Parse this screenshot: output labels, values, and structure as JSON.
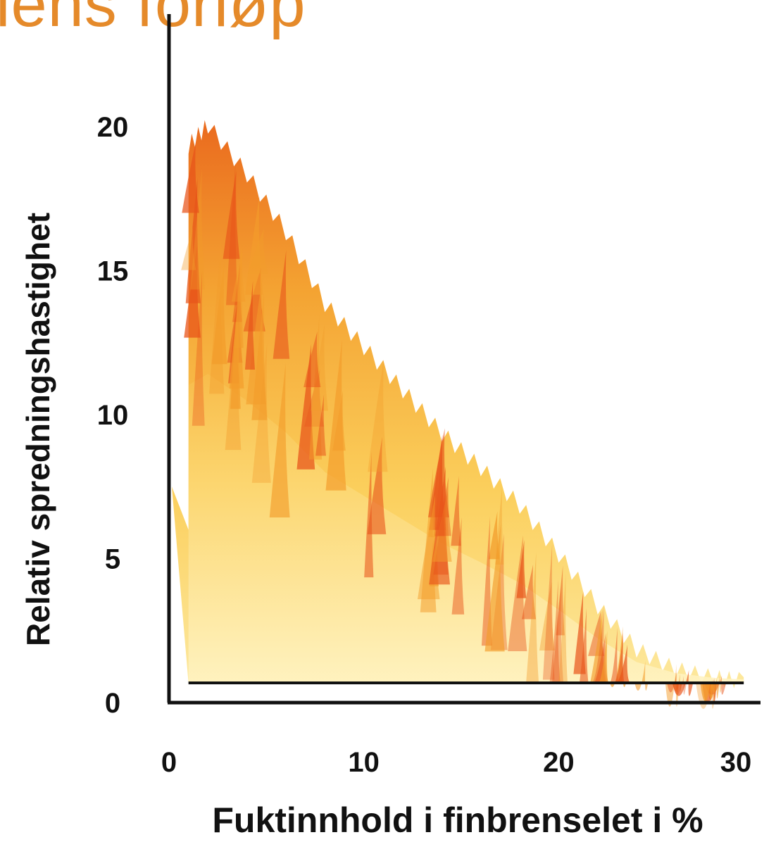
{
  "title": "lens forløp",
  "chart_data": {
    "type": "area",
    "xlabel": "Fuktinnhold i finbrenselet i %",
    "ylabel": "Relativ spredningshastighet",
    "xlim": [
      0,
      30
    ],
    "ylim": [
      0,
      20
    ],
    "xticks": [
      0,
      10,
      20,
      30
    ],
    "yticks": [
      0,
      5,
      10,
      15,
      20
    ],
    "grid": false,
    "x": [
      1,
      2,
      4,
      6,
      8,
      10,
      12,
      14,
      16,
      18,
      20,
      22,
      24,
      26,
      28,
      29.5
    ],
    "y": [
      19.5,
      20.2,
      18.5,
      16.5,
      14.0,
      12.5,
      11.0,
      9.5,
      8.3,
      7.0,
      5.3,
      3.5,
      2.0,
      1.3,
      1.0,
      0.9
    ],
    "series": [
      {
        "values": [
          19.5,
          20.2,
          18.5,
          16.5,
          14.0,
          12.5,
          11.0,
          9.5,
          8.3,
          7.0,
          5.3,
          3.5,
          2.0,
          1.3,
          1.0,
          0.9
        ],
        "colors": {
          "outer": "#e8541a",
          "mid": "#f39c2b",
          "inner": "#fbd46a"
        }
      }
    ]
  }
}
